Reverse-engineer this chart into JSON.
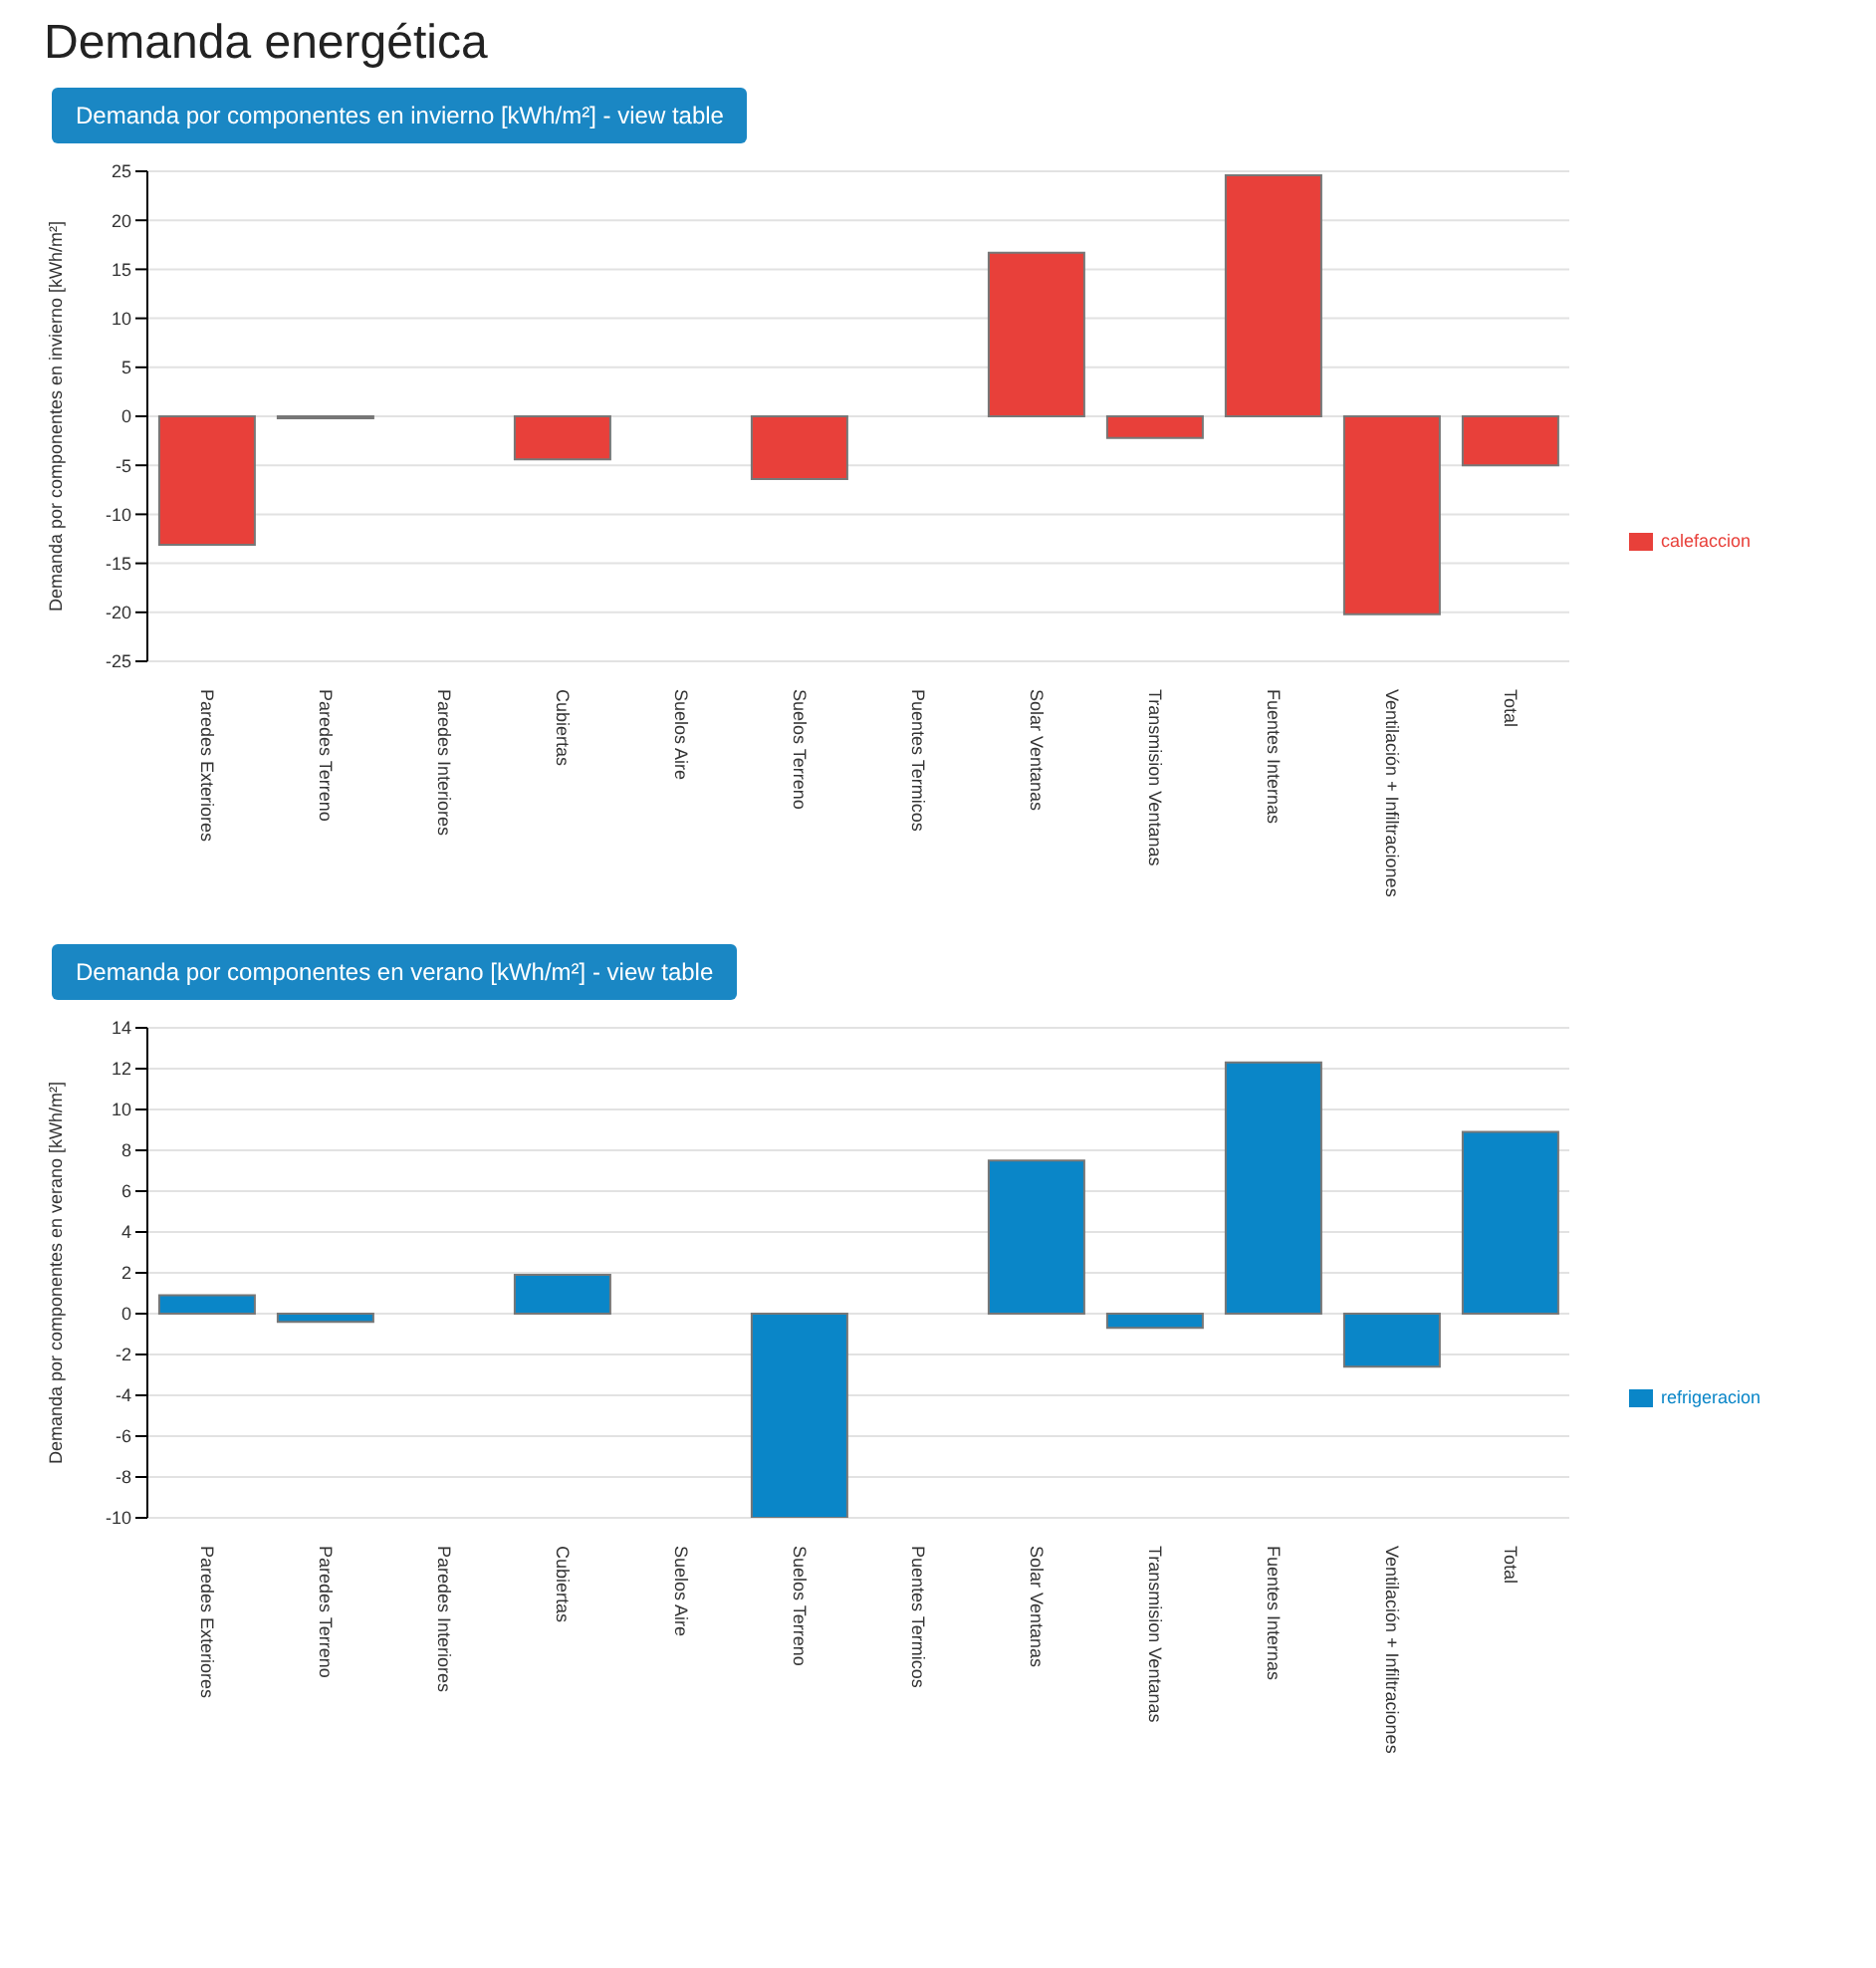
{
  "chart_data": [
    {
      "type": "bar",
      "title": "Demanda por componentes en invierno [kWh/m²] - view table",
      "annotations": [
        "Demanda energética"
      ],
      "ylabel": "Demanda por componentes en invierno [kWh/m²]",
      "categories": [
        "Paredes Exteriores",
        "Paredes Terreno",
        "Paredes Interiores",
        "Cubiertas",
        "Suelos Aire",
        "Suelos Terreno",
        "Puentes Termicos",
        "Solar Ventanas",
        "Transmision Ventanas",
        "Fuentes Internas",
        "Ventilación + Infiltraciones",
        "Total"
      ],
      "series": [
        {
          "name": "calefaccion",
          "color": "#e8403a",
          "values": [
            -13.1,
            -0.2,
            0,
            -4.4,
            0,
            -6.4,
            0,
            16.7,
            -2.2,
            24.6,
            -20.2,
            -5.0
          ]
        }
      ],
      "ylim": [
        -25,
        25
      ],
      "yticks": [
        -25,
        -20,
        -15,
        -10,
        -5,
        0,
        5,
        10,
        15,
        20,
        25
      ],
      "grid": "y",
      "legend": "right"
    },
    {
      "type": "bar",
      "title": "Demanda por componentes en verano [kWh/m²] - view table",
      "ylabel": "Demanda por componentes en verano [kWh/m²]",
      "categories": [
        "Paredes Exteriores",
        "Paredes Terreno",
        "Paredes Interiores",
        "Cubiertas",
        "Suelos Aire",
        "Suelos Terreno",
        "Puentes Termicos",
        "Solar Ventanas",
        "Transmision Ventanas",
        "Fuentes Internas",
        "Ventilación + Infiltraciones",
        "Total"
      ],
      "series": [
        {
          "name": "refrigeracion",
          "color": "#0a86c8",
          "values": [
            0.9,
            -0.4,
            0,
            1.9,
            0,
            -10,
            0,
            7.5,
            -0.7,
            12.3,
            -2.6,
            8.9
          ]
        }
      ],
      "ylim": [
        -10,
        14
      ],
      "yticks": [
        -10,
        -8,
        -6,
        -4,
        -2,
        0,
        2,
        4,
        6,
        8,
        10,
        12,
        14
      ],
      "grid": "y",
      "legend": "right"
    }
  ]
}
